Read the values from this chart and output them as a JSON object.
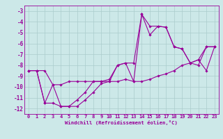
{
  "xlabel": "Windchill (Refroidissement éolien,°C)",
  "x": [
    0,
    1,
    2,
    3,
    4,
    5,
    6,
    7,
    8,
    9,
    10,
    11,
    12,
    13,
    14,
    15,
    16,
    17,
    18,
    19,
    20,
    21,
    22,
    23
  ],
  "line_main": [
    -8.5,
    -8.5,
    -11.5,
    -9.8,
    -11.8,
    -11.8,
    -11.2,
    -10.5,
    -9.5,
    -9.5,
    -9.5,
    -8.0,
    -7.8,
    -9.5,
    -3.3,
    -5.2,
    -4.4,
    -4.5,
    -6.3,
    -6.5,
    -7.8,
    -8.0,
    -6.3,
    -6.3
  ],
  "line_min": [
    -8.5,
    -8.5,
    -11.5,
    -11.5,
    -11.8,
    -11.8,
    -11.8,
    -11.2,
    -10.5,
    -9.7,
    -9.5,
    -9.5,
    -9.3,
    -9.5,
    -9.5,
    -9.3,
    -9.0,
    -8.8,
    -8.5,
    -8.0,
    -7.8,
    -7.5,
    -8.5,
    -6.3
  ],
  "line_max": [
    -8.5,
    -8.5,
    -8.5,
    -9.8,
    -9.8,
    -9.5,
    -9.5,
    -9.5,
    -9.5,
    -9.5,
    -9.3,
    -8.0,
    -7.8,
    -7.8,
    -3.3,
    -4.4,
    -4.4,
    -4.5,
    -6.3,
    -6.5,
    -7.8,
    -7.5,
    -6.3,
    -6.3
  ],
  "ylim": [
    -12.5,
    -2.5
  ],
  "xlim": [
    -0.5,
    23.5
  ],
  "yticks": [
    -12,
    -11,
    -10,
    -9,
    -8,
    -7,
    -6,
    -5,
    -4,
    -3
  ],
  "xticks": [
    0,
    1,
    2,
    3,
    4,
    5,
    6,
    7,
    8,
    9,
    10,
    11,
    12,
    13,
    14,
    15,
    16,
    17,
    18,
    19,
    20,
    21,
    22,
    23
  ],
  "line_color": "#990099",
  "bg_color": "#cce8e8",
  "grid_color": "#aacccc",
  "marker": "D",
  "marker_size": 1.8,
  "linewidth": 0.8,
  "tick_fontsize": 5.0,
  "xlabel_fontsize": 5.2
}
